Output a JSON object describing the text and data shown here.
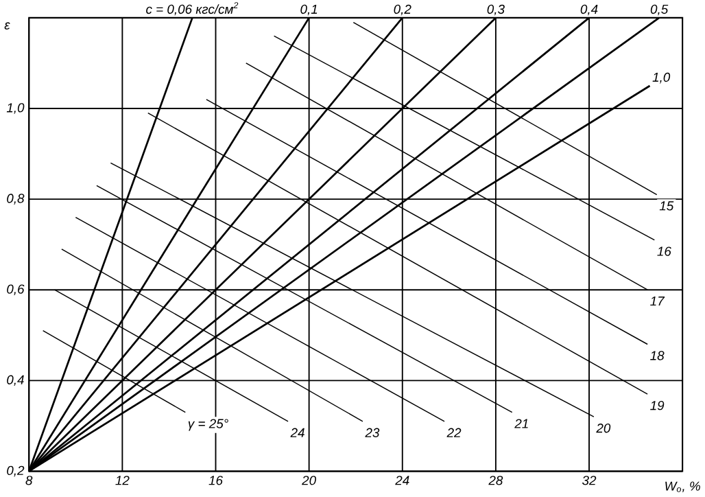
{
  "chart_data": {
    "type": "line",
    "xlabel": "W$_{о}$, %",
    "ylabel": "ε",
    "xlim": [
      8,
      36
    ],
    "ylim": [
      0.2,
      1.2
    ],
    "xticks": [
      8,
      12,
      16,
      20,
      24,
      28,
      32
    ],
    "yticks": [
      {
        "value": 0.2,
        "label": "0,2"
      },
      {
        "value": 0.4,
        "label": "0,4"
      },
      {
        "value": 0.6,
        "label": "0,6"
      },
      {
        "value": 0.8,
        "label": "0,8"
      },
      {
        "value": 1.0,
        "label": "1,0"
      },
      {
        "value": 1.2,
        "label": null
      }
    ],
    "grid": true,
    "marker": "none",
    "line_style": "solid",
    "color": "#000000",
    "series": [
      {
        "name": "c = 0,06 кгс/см$^{2}$",
        "x": [
          8,
          15
        ],
        "values": [
          0.2,
          1.2
        ]
      },
      {
        "name": "0,1",
        "x": [
          8,
          20
        ],
        "values": [
          0.2,
          1.2
        ]
      },
      {
        "name": "0,2",
        "x": [
          8,
          24
        ],
        "values": [
          0.2,
          1.2
        ]
      },
      {
        "name": "0,3",
        "x": [
          8,
          28
        ],
        "values": [
          0.2,
          1.2
        ]
      },
      {
        "name": "0,4",
        "x": [
          8,
          32
        ],
        "values": [
          0.2,
          1.2
        ]
      },
      {
        "name": "0,5",
        "x": [
          8,
          35
        ],
        "values": [
          0.2,
          1.2
        ]
      },
      {
        "name": "1,0",
        "x": [
          8,
          34.6
        ],
        "values": [
          0.2,
          1.05
        ]
      },
      {
        "name": "γ = 25°",
        "x": [
          8.6,
          14.7
        ],
        "values": [
          0.51,
          0.33
        ]
      },
      {
        "name": "24",
        "x": [
          9.1,
          19.1
        ],
        "values": [
          0.6,
          0.31
        ]
      },
      {
        "name": "23",
        "x": [
          9.4,
          22.3
        ],
        "values": [
          0.69,
          0.31
        ]
      },
      {
        "name": "22",
        "x": [
          10.0,
          25.8
        ],
        "values": [
          0.76,
          0.31
        ]
      },
      {
        "name": "21",
        "x": [
          10.9,
          28.7
        ],
        "values": [
          0.83,
          0.33
        ]
      },
      {
        "name": "20",
        "x": [
          11.5,
          32.2
        ],
        "values": [
          0.88,
          0.32
        ]
      },
      {
        "name": "19",
        "x": [
          13.1,
          34.5
        ],
        "values": [
          0.99,
          0.37
        ]
      },
      {
        "name": "18",
        "x": [
          15.6,
          34.5
        ],
        "values": [
          1.02,
          0.48
        ]
      },
      {
        "name": "17",
        "x": [
          17.3,
          34.5
        ],
        "values": [
          1.1,
          0.6
        ]
      },
      {
        "name": "16",
        "x": [
          18.5,
          34.8
        ],
        "values": [
          1.16,
          0.71
        ]
      },
      {
        "name": "15",
        "x": [
          21.9,
          34.9
        ],
        "values": [
          1.19,
          0.81
        ]
      }
    ]
  }
}
